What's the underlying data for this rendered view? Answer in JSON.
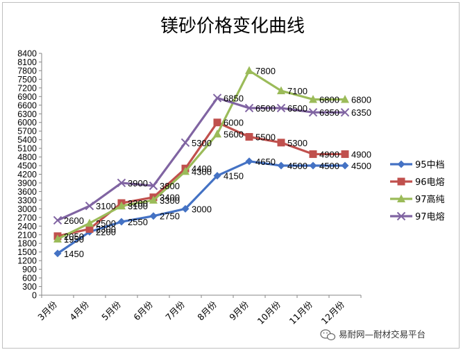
{
  "chart_data": {
    "type": "line",
    "title": "镁砂价格变化曲线",
    "categories": [
      "3月份",
      "4月份",
      "5月份",
      "6月份",
      "7月份",
      "8月份",
      "9月份",
      "10月份",
      "11月份",
      "12月份"
    ],
    "ylim": [
      0,
      8400
    ],
    "ytick_step": 300,
    "grid": false,
    "legend_position": "right",
    "series": [
      {
        "name": "95中档",
        "color": "#4472c4",
        "marker": "diamond",
        "values": [
          1450,
          2200,
          2550,
          2750,
          3000,
          4150,
          4650,
          4500,
          4500,
          4500
        ],
        "labels": [
          "1450",
          "2200",
          "2550",
          "2750",
          "3000",
          "4150",
          "4650",
          "4500",
          "4500",
          "4500"
        ]
      },
      {
        "name": "96电熔",
        "color": "#c0504d",
        "marker": "square",
        "values": [
          2050,
          2300,
          3200,
          3400,
          4400,
          6000,
          5500,
          5300,
          4900,
          4900
        ],
        "labels": [
          "2050",
          "2300",
          "3200",
          "3400",
          "4400",
          "6000",
          "5500",
          "5300",
          "4900",
          "4900"
        ]
      },
      {
        "name": "97高纯",
        "color": "#9bbb59",
        "marker": "triangle",
        "values": [
          1950,
          2500,
          3100,
          3300,
          4300,
          5600,
          7800,
          7100,
          6800,
          6800
        ],
        "labels": [
          "1950",
          "2500",
          "3100",
          "3300",
          "4300",
          "5600",
          "7800",
          "7100",
          "6800",
          "6800"
        ]
      },
      {
        "name": "97电熔",
        "color": "#8064a2",
        "marker": "x",
        "values": [
          2600,
          3100,
          3900,
          3800,
          5300,
          6850,
          6500,
          6500,
          6350,
          6350
        ],
        "labels": [
          "2600",
          "3100",
          "3900",
          "3800",
          "5300",
          "6850",
          "6500",
          "6500",
          "6350",
          "6350"
        ]
      }
    ]
  },
  "watermark": {
    "icon": "wechat-icon",
    "text": "易耐网—耐材交易平台"
  }
}
